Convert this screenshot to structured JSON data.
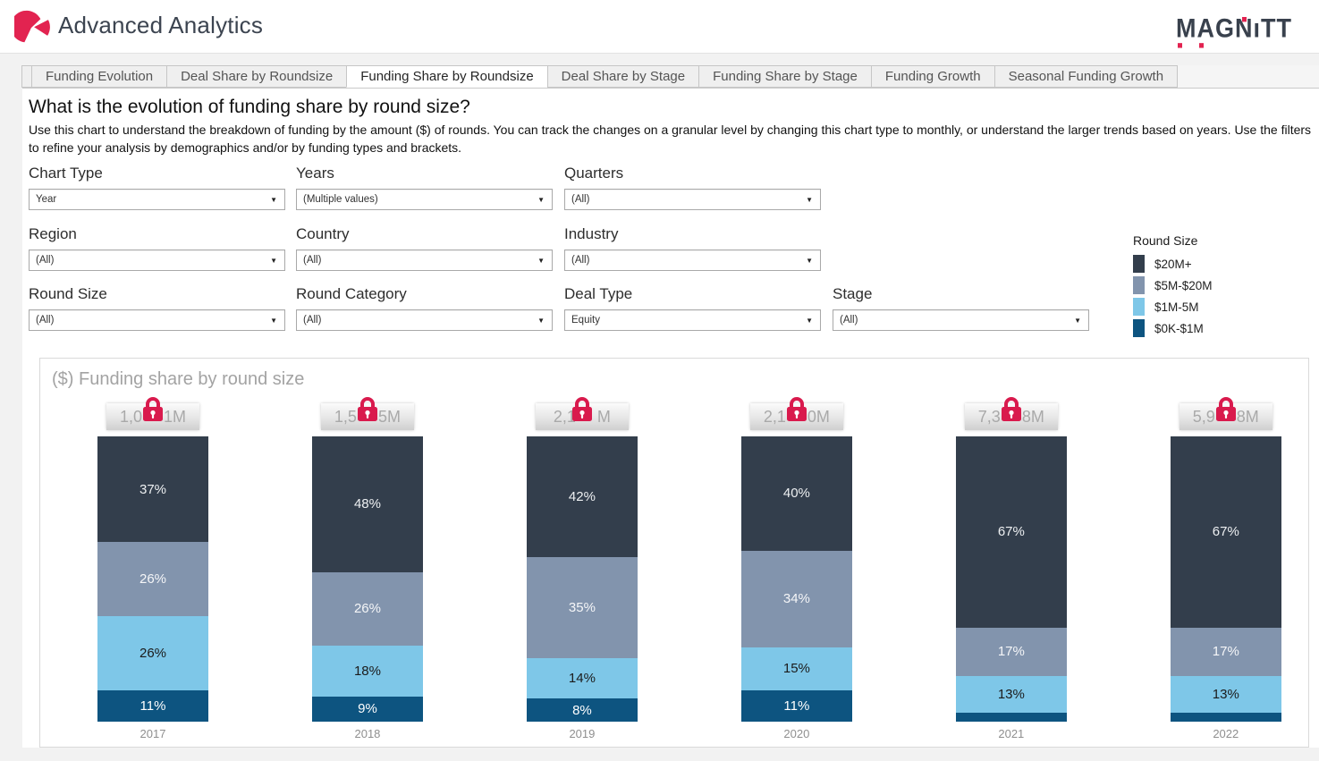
{
  "header": {
    "title": "Advanced Analytics",
    "brand": "MAGNiTT"
  },
  "tabs": [
    {
      "label": "Funding Evolution",
      "active": false
    },
    {
      "label": "Deal Share by Roundsize",
      "active": false
    },
    {
      "label": "Funding Share by Roundsize",
      "active": true
    },
    {
      "label": "Deal Share by Stage",
      "active": false
    },
    {
      "label": "Funding Share by Stage",
      "active": false
    },
    {
      "label": "Funding Growth",
      "active": false
    },
    {
      "label": "Seasonal Funding Growth",
      "active": false
    }
  ],
  "page": {
    "question": "What is the evolution of funding share by round size?",
    "description": "Use this chart to understand the breakdown of funding by the amount ($) of rounds. You can track the changes on a granular level by changing this chart type to monthly, or understand the larger trends based on years. Use the filters to refine your analysis by demographics and/or by funding types and brackets."
  },
  "filters": [
    {
      "label": "Chart Type",
      "value": "Year"
    },
    {
      "label": "Years",
      "value": "(Multiple values)"
    },
    {
      "label": "Quarters",
      "value": "(All)"
    },
    {
      "label": "Region",
      "value": "(All)"
    },
    {
      "label": "Country",
      "value": "(All)"
    },
    {
      "label": "Industry",
      "value": "(All)"
    },
    {
      "label": "Round Size",
      "value": "(All)"
    },
    {
      "label": "Round Category",
      "value": "(All)"
    },
    {
      "label": "Deal Type",
      "value": "Equity"
    },
    {
      "label": "Stage",
      "value": "(All)"
    }
  ],
  "legend": {
    "title": "Round Size",
    "items": [
      {
        "label": "$20M+",
        "color": "#333e4c"
      },
      {
        "label": "$5M-$20M",
        "color": "#8294ad"
      },
      {
        "label": "$1M-5M",
        "color": "#7ec7e8"
      },
      {
        "label": "$0K-$1M",
        "color": "#0d5480"
      }
    ]
  },
  "chart_data": {
    "type": "bar",
    "stacked": true,
    "percent": true,
    "title": "($) Funding share by round size",
    "categories": [
      "2017",
      "2018",
      "2019",
      "2020",
      "2021",
      "2022"
    ],
    "series": [
      {
        "name": "$20M+",
        "color": "#333e4c",
        "label_color": "#eef0f2",
        "values": [
          37,
          48,
          42,
          40,
          67,
          67
        ]
      },
      {
        "name": "$5M-$20M",
        "color": "#8294ad",
        "label_color": "#f5f6f8",
        "values": [
          26,
          26,
          35,
          34,
          17,
          17
        ]
      },
      {
        "name": "$1M-5M",
        "color": "#7ec7e8",
        "label_color": "#1b1b1b",
        "values": [
          26,
          18,
          14,
          15,
          13,
          13
        ]
      },
      {
        "name": "$0K-$1M",
        "color": "#0d5480",
        "label_color": "#ffffff",
        "values": [
          11,
          9,
          8,
          11,
          3,
          3
        ]
      }
    ],
    "totals_locked": true,
    "totals": [
      {
        "prefix": "1,0",
        "suffix": "1M"
      },
      {
        "prefix": "1,5",
        "suffix": "5M"
      },
      {
        "prefix": "2,1",
        "suffix": "M"
      },
      {
        "prefix": "2,1",
        "suffix": "0M"
      },
      {
        "prefix": "7,3",
        "suffix": "8M"
      },
      {
        "prefix": "5,9",
        "suffix": "8M"
      }
    ],
    "ylim": [
      0,
      100
    ],
    "grid": false,
    "legend_position": "right-of-filters"
  },
  "accent_colors": {
    "brand_pink": "#e22350",
    "lock_red": "#d91a4d"
  }
}
